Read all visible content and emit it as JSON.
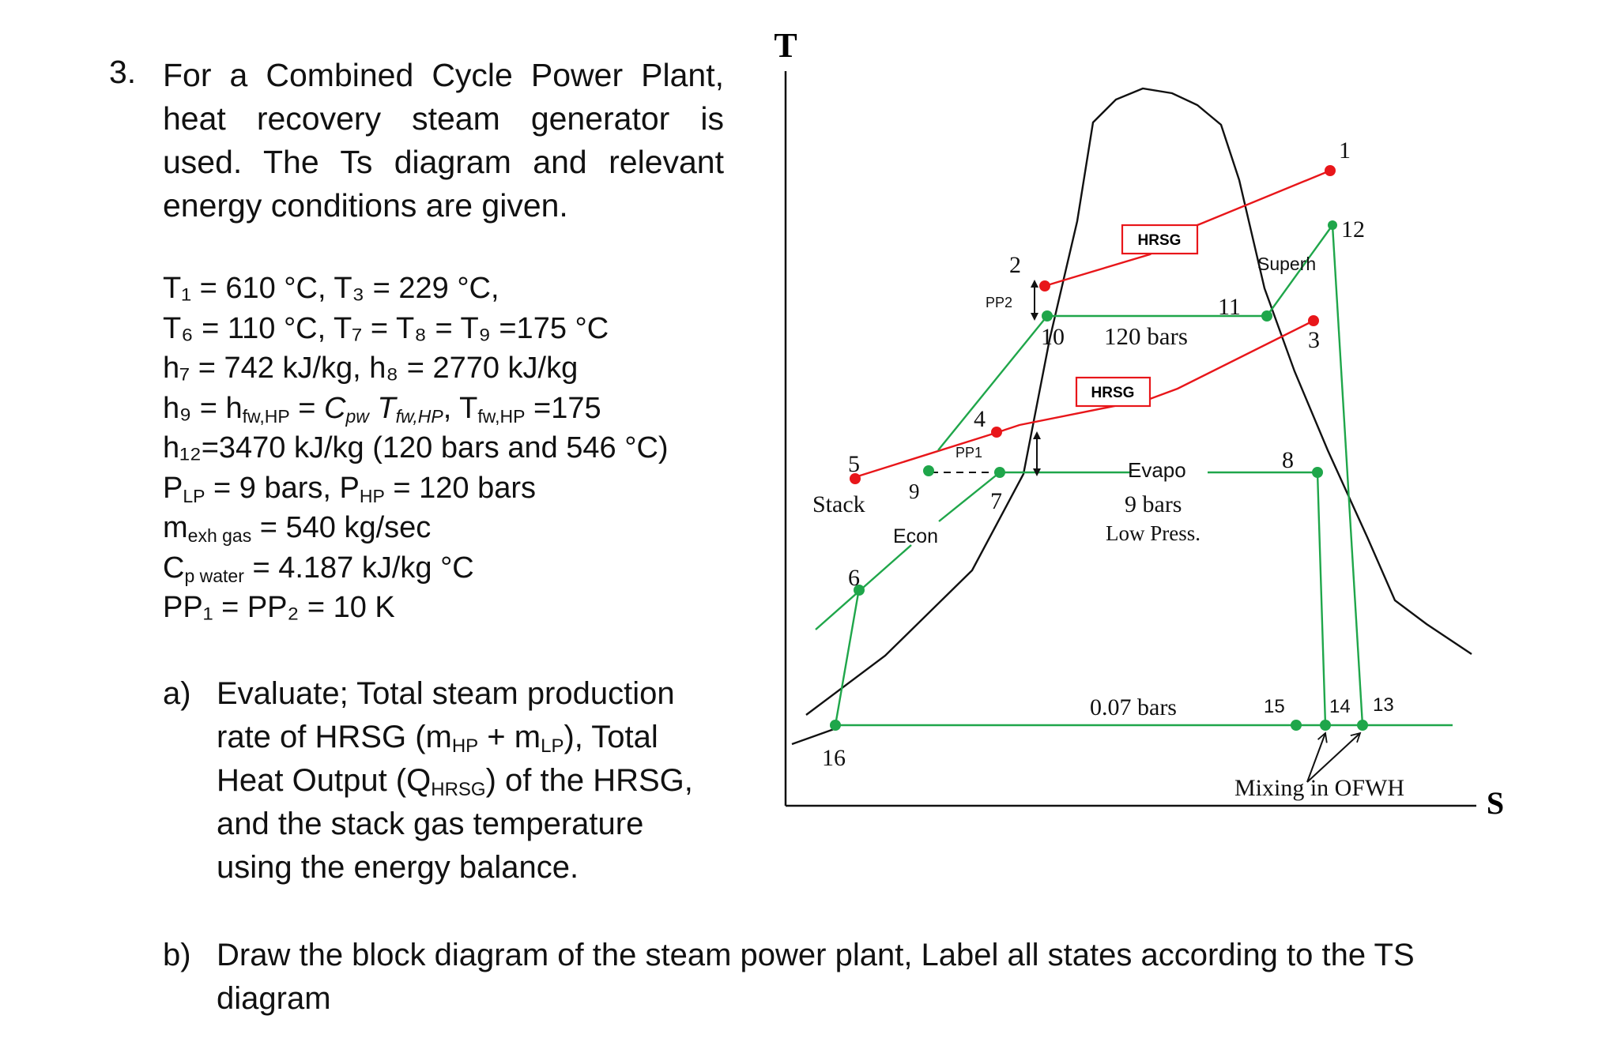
{
  "question": {
    "number": "3.",
    "text": "For a Combined Cycle Power Plant, heat recovery steam generator is used. The Ts diagram and relevant energy conditions are given."
  },
  "givens": {
    "line1": "T₁ = 610 °C, T₃ = 229 °C,",
    "line2": "T₆ = 110 °C, T₇ = T₈ = T₉ =175 °C",
    "line3": "h₇ = 742 kJ/kg, h₈ = 2770 kJ/kg",
    "line4": {
      "a": "h₉ = h",
      "a_sub": "fw,HP",
      "b": " = ",
      "c": "C",
      "c_sub": "pw",
      "d": " T",
      "d_sub": "fw,HP",
      "e": ", T",
      "e_sub": "fw,HP",
      "f": " =175"
    },
    "line5": "h₁₂=3470 kJ/kg (120 bars and 546 °C)",
    "line6": {
      "a": "P",
      "a_sub": "LP",
      "b": " = 9 bars, P",
      "b_sub": "HP",
      "c": " = 120 bars"
    },
    "line7": {
      "a": "m",
      "a_sub": "exh gas",
      "b": " = 540 kg/sec"
    },
    "line8": {
      "a": "C",
      "a_sub": "p water",
      "b": " = 4.187 kJ/kg °C"
    },
    "line9": "PP₁ = PP₂ = 10 K"
  },
  "part_a": {
    "label": "a)",
    "t1": "Evaluate; Total steam production rate of HRSG (m",
    "s1": "HP",
    "t2": " + m",
    "s2": "LP",
    "t3": "), Total Heat Output (Q",
    "s3": "HRSG",
    "t4": ") of the HRSG, and the stack gas temperature using the energy balance."
  },
  "part_b": {
    "label": "b)",
    "text": "Draw the block diagram of the steam power plant, Label all states according to the TS diagram"
  },
  "diagram": {
    "axis_t": "T",
    "axis_s": "S",
    "colors": {
      "gas_line": "#e8161a",
      "water_line": "#1fa64a",
      "dome": "#000000",
      "hrsg_box": "#e8161a"
    },
    "labels": {
      "p1": "1",
      "p2": "2",
      "p3": "3",
      "p4": "4",
      "p5": "5",
      "p6": "6",
      "p7": "7",
      "p8": "8",
      "p9": "9",
      "p10": "10",
      "p11": "11",
      "p12": "12",
      "p13": "13",
      "p14": "14",
      "p15": "15",
      "p16": "16",
      "hrsg_hp": "HRSG",
      "hrsg_lp": "HRSG",
      "superh": "Superh",
      "pp2": "PP2",
      "pp1": "PP1",
      "bars_120": "120 bars",
      "evapo": "Evapo",
      "bars_9": "9 bars",
      "low_press": "Low Press.",
      "stack": "Stack",
      "econ": "Econ",
      "bars_007": "0.07 bars",
      "mixing": "Mixing in OFWH"
    }
  }
}
